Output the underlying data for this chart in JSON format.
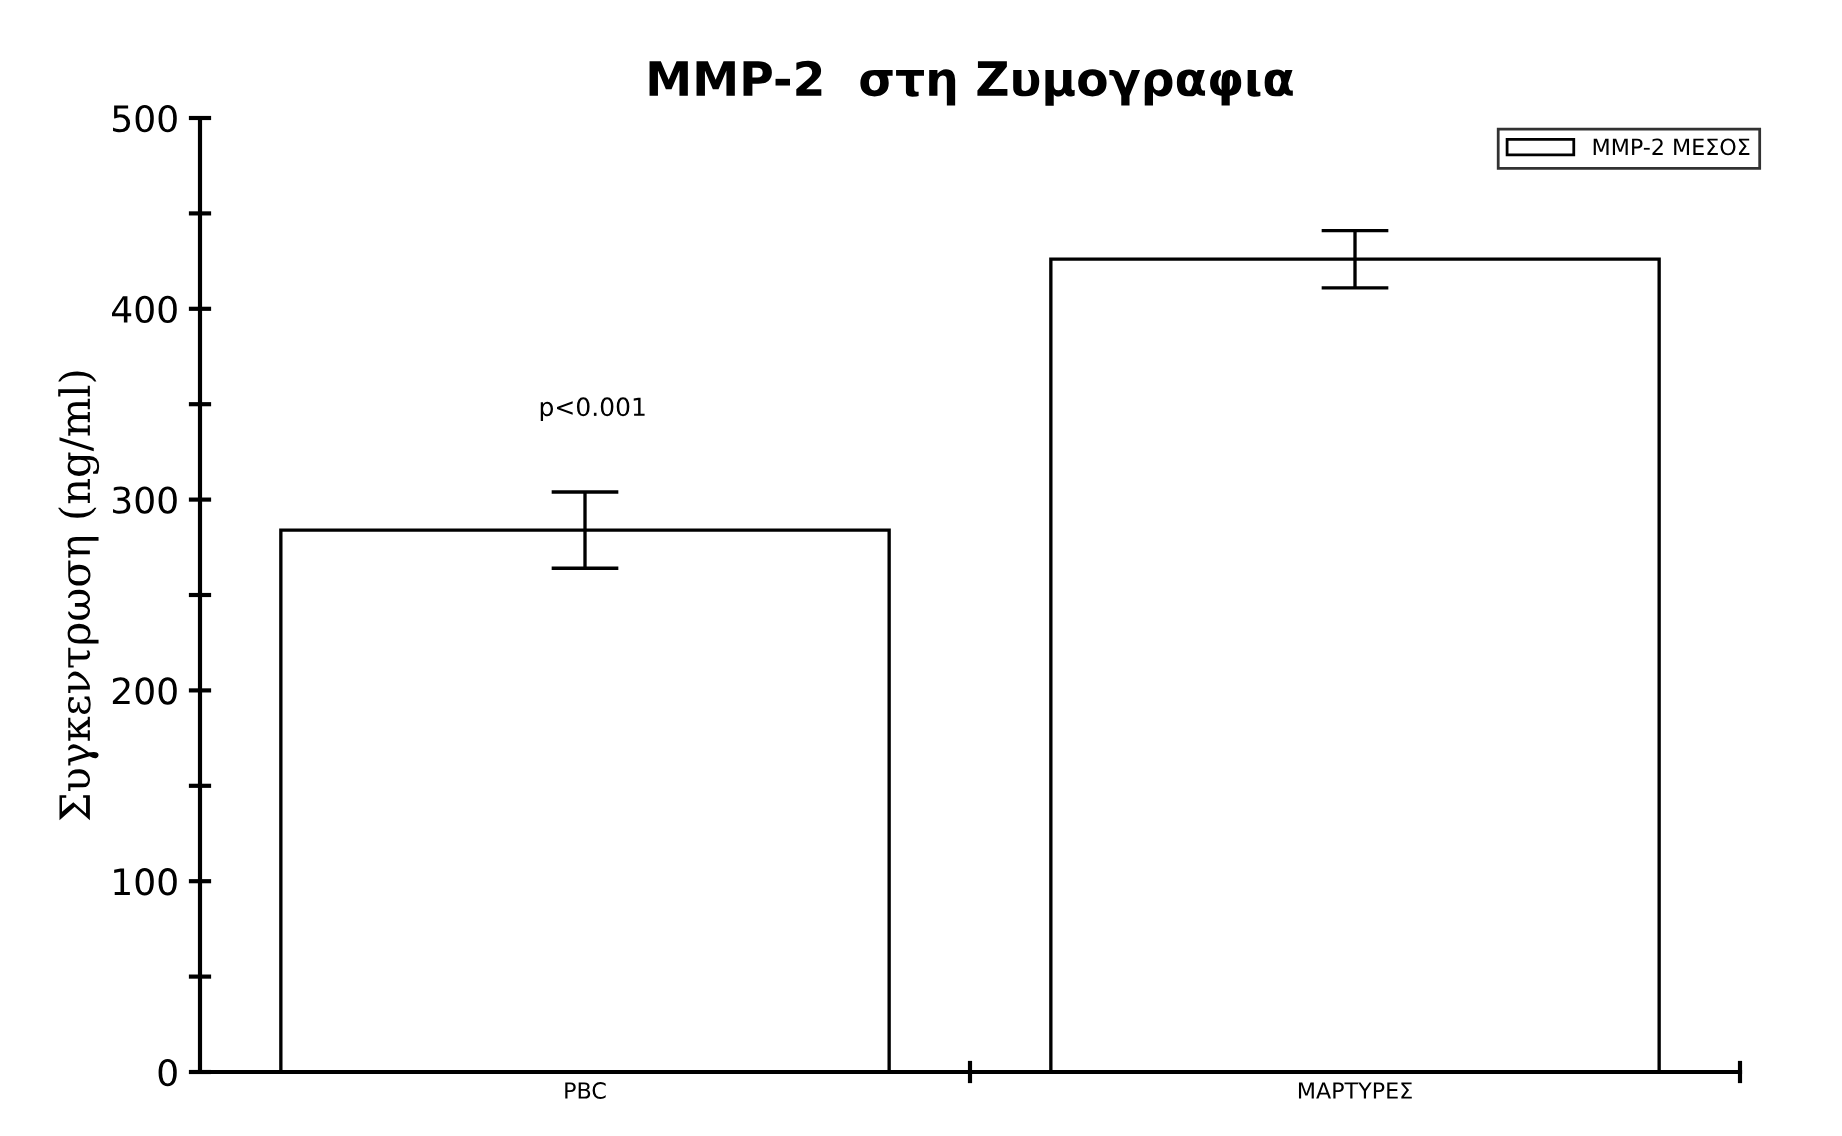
{
  "chart_data": {
    "type": "bar",
    "title": "MMP-2  στη Ζυμογραφια",
    "ylabel": "Συγκεντρωση (ng/ml)",
    "categories": [
      "PBC",
      "ΜΑΡΤΥΡΕΣ"
    ],
    "series": [
      {
        "name": "MMP-2 ΜΕΣΟΣ",
        "color": "#ffffff",
        "values": [
          284,
          426
        ],
        "errors": [
          20,
          15
        ]
      }
    ],
    "ylim": [
      0,
      500
    ],
    "yticks": [
      0,
      {
        "value": 50,
        "label": null
      },
      100,
      {
        "value": 150,
        "label": null
      },
      200,
      {
        "value": 250,
        "label": null
      },
      300,
      {
        "value": 350,
        "label": null
      },
      400,
      {
        "value": 450,
        "label": null
      },
      500
    ],
    "annotations": [
      "p<0.001"
    ],
    "legend": "top right",
    "grid": false
  }
}
